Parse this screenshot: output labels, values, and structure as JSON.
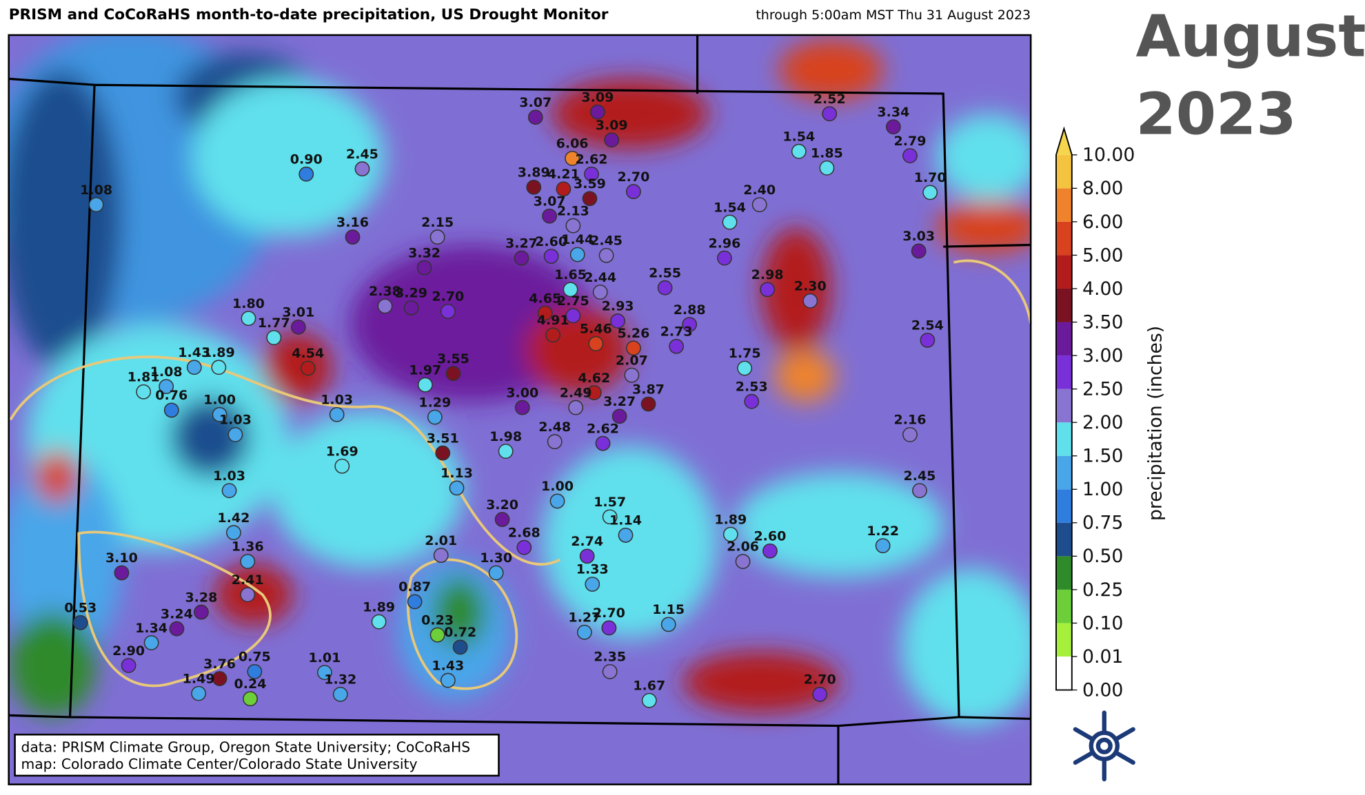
{
  "header": {
    "title": "PRISM and CoCoRaHS month-to-date precipitation, US Drought Monitor",
    "subtitle": "through 5:00am MST Thu 31 August 2023",
    "month": "August",
    "year": "2023"
  },
  "colorbar": {
    "label": "precipitation (inches)",
    "levels": [
      "0.00",
      "0.01",
      "0.10",
      "0.25",
      "0.50",
      "0.75",
      "1.00",
      "1.50",
      "2.00",
      "2.50",
      "3.00",
      "3.50",
      "4.00",
      "5.00",
      "6.00",
      "8.00",
      "10.00"
    ],
    "colors": [
      "#ffffff",
      "#a6f03c",
      "#6ccf3a",
      "#2f8a2a",
      "#1e4d8e",
      "#2f7ddf",
      "#48a6e9",
      "#60e0ec",
      "#8a74d2",
      "#7a30d8",
      "#6c1a9c",
      "#7a1222",
      "#b31c1c",
      "#d8421e",
      "#ef832b",
      "#f4c440"
    ],
    "extend_color": "#f6d64c"
  },
  "stations": [
    "1.08",
    "0.90",
    "2.45",
    "3.07",
    "3.09",
    "3.09",
    "6.06",
    "2.62",
    "3.89",
    "4.21",
    "3.59",
    "2.70",
    "3.07",
    "2.13",
    "2.52",
    "3.34",
    "1.54",
    "1.85",
    "2.79",
    "1.70",
    "2.40",
    "1.54",
    "3.16",
    "2.15",
    "3.27",
    "2.60",
    "1.44",
    "2.45",
    "2.96",
    "3.03",
    "3.32",
    "1.65",
    "2.44",
    "2.55",
    "2.98",
    "2.30",
    "2.38",
    "3.29",
    "2.70",
    "4.65",
    "2.75",
    "2.93",
    "1.80",
    "3.01",
    "1.77",
    "4.91",
    "5.46",
    "5.26",
    "2.88",
    "2.73",
    "2.54",
    "1.43",
    "1.89",
    "4.54",
    "1.97",
    "3.55",
    "2.07",
    "1.75",
    "1.81",
    "1.08",
    "0.76",
    "1.00",
    "1.03",
    "1.03",
    "1.29",
    "3.00",
    "4.62",
    "2.49",
    "3.27",
    "3.87",
    "2.53",
    "2.16",
    "3.51",
    "1.98",
    "2.48",
    "2.62",
    "1.69",
    "1.13",
    "1.03",
    "1.00",
    "2.45",
    "1.57",
    "1.14",
    "3.20",
    "2.68",
    "1.89",
    "2.60",
    "2.06",
    "1.22",
    "1.42",
    "1.36",
    "3.10",
    "2.01",
    "2.74",
    "1.30",
    "1.33",
    "2.41",
    "3.28",
    "0.87",
    "1.89",
    "0.53",
    "3.24",
    "1.34",
    "0.23",
    "0.72",
    "1.27",
    "2.70",
    "1.15",
    "2.90",
    "2.35",
    "3.76",
    "0.75",
    "1.01",
    "1.49",
    "0.24",
    "1.32",
    "1.43",
    "1.67",
    "2.70"
  ],
  "credits": [
    "data: PRISM Climate Group, Oregon State University; CoCoRaHS",
    "map: Colorado Climate Center/Colorado State University"
  ]
}
